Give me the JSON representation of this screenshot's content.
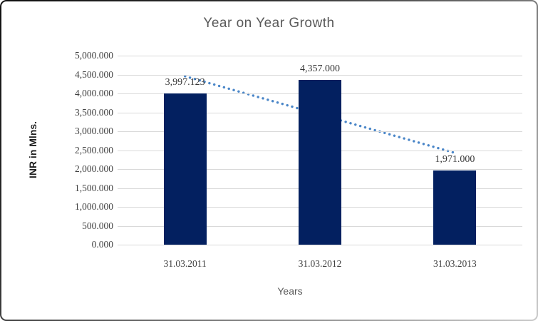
{
  "chart_data": {
    "type": "bar",
    "title": "Year on Year Growth",
    "xlabel": "Years",
    "ylabel": "INR in Mlns.",
    "categories": [
      "31.03.2011",
      "31.03.2012",
      "31.03.2013"
    ],
    "values": [
      3997.123,
      4357.0,
      1971.0
    ],
    "data_labels": [
      "3,997.123",
      "4,357.000",
      "1,971.000"
    ],
    "y_ticks": [
      "5,000.000",
      "4,500.000",
      "4,000.000",
      "3,500.000",
      "3,000.000",
      "2,500.000",
      "2,000.000",
      "1,500.000",
      "1,000.000",
      "500.000",
      "0.000"
    ],
    "ylim": [
      0,
      5000
    ],
    "y_tick_step": 500,
    "grid": true,
    "legend": "none",
    "trendline": {
      "type": "linear",
      "style": "round-dotted",
      "color": "#4a86c8"
    },
    "colors": {
      "bar": "#032060",
      "gridline": "#d9d9d9",
      "title_text": "#595959",
      "tick_text": "#404040",
      "data_label_text": "#363636",
      "y_axis_title_text": "#1f1f1f",
      "x_axis_title_text": "#595959"
    }
  }
}
